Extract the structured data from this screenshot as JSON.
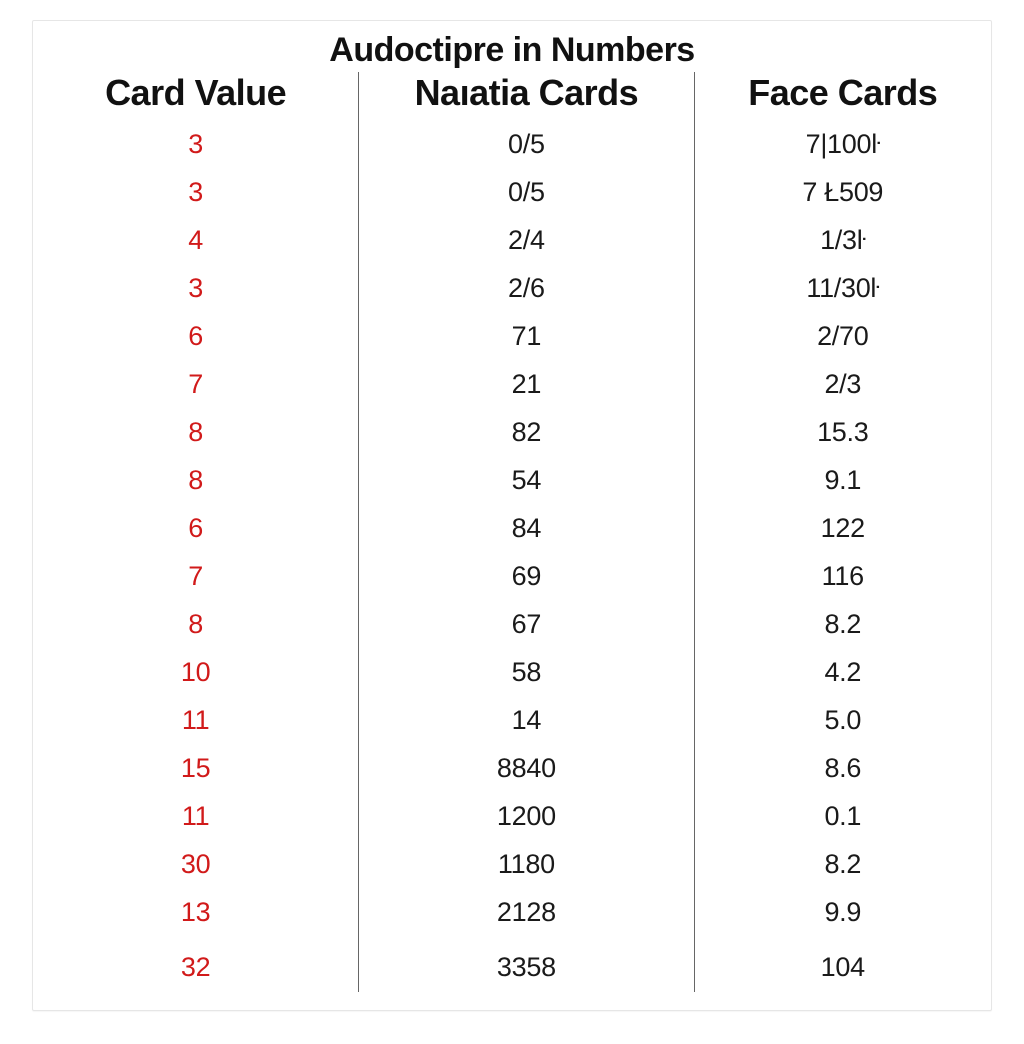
{
  "title": "Audoctipre in Numbers",
  "table": {
    "type": "table",
    "background_color": "#ffffff",
    "border_color": "#e6e6e6",
    "separator_color": "#666666",
    "title_fontsize": 34,
    "header_fontsize": 36,
    "cell_fontsize": 27,
    "card_value_color": "#d11a1a",
    "text_color": "#1a1a1a",
    "column_widths_percent": [
      34,
      35,
      31
    ],
    "columns": [
      "Card Value",
      "Naıatia Cards",
      "Face Cards"
    ],
    "rows": [
      [
        "3",
        "0/5",
        "7|100ŀ"
      ],
      [
        "3",
        "0/5",
        "7 Ł509"
      ],
      [
        "4",
        "2/4",
        "1/3ŀ"
      ],
      [
        "3",
        "2/6",
        "11/30ŀ"
      ],
      [
        "6",
        "71",
        "2/70"
      ],
      [
        "7",
        "21",
        "2/3"
      ],
      [
        "8",
        "82",
        "15.3"
      ],
      [
        "8",
        "54",
        "9.1"
      ],
      [
        "6",
        "84",
        "122"
      ],
      [
        "7",
        "69",
        "116"
      ],
      [
        "8",
        "67",
        "8.2"
      ],
      [
        "10",
        "58",
        "4.2"
      ],
      [
        "11",
        "14",
        "5.0"
      ],
      [
        "15",
        "8840",
        "8.6"
      ],
      [
        "11",
        "1200",
        "0.1"
      ],
      [
        "30",
        "1180",
        "8.2"
      ],
      [
        "13",
        "2128",
        "9.9"
      ],
      [
        "32",
        "3358",
        "104"
      ]
    ]
  }
}
